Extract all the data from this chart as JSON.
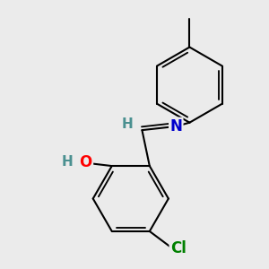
{
  "background_color": "#ebebeb",
  "bond_color": "#000000",
  "bond_width": 1.5,
  "atom_colors": {
    "O": "#ff0000",
    "N": "#0000cc",
    "Cl": "#008000",
    "H_imine": "#4a9090",
    "H_oh": "#4a9090",
    "C": "#000000"
  },
  "font_size_atoms": 12,
  "font_size_H": 11
}
